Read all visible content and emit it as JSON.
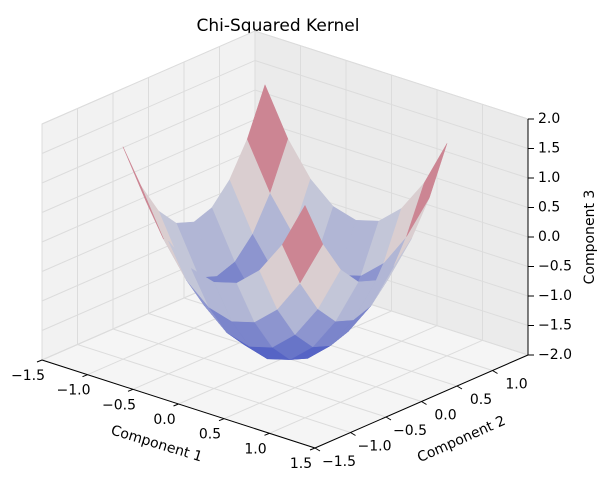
{
  "chart_data": {
    "type": "surface",
    "title": "Chi-Squared Kernel",
    "xlabel": "Component 1",
    "ylabel": "Component 2",
    "zlabel": "Component 3",
    "x": [
      -1,
      -0.75,
      -0.5,
      -0.25,
      0,
      0.25,
      0.5,
      0.75,
      1
    ],
    "y": [
      -1,
      -0.75,
      -0.5,
      -0.25,
      0,
      0.25,
      0.5,
      0.75,
      1
    ],
    "z": [
      [
        1.6,
        0.81,
        0.25,
        -0.09,
        -0.2,
        -0.09,
        0.25,
        0.81,
        1.6
      ],
      [
        0.81,
        0.03,
        -0.54,
        -0.88,
        -0.99,
        -0.88,
        -0.54,
        0.03,
        0.81
      ],
      [
        0.25,
        -0.54,
        -1.1,
        -1.44,
        -1.55,
        -1.44,
        -1.1,
        -0.54,
        0.25
      ],
      [
        -0.09,
        -0.88,
        -1.44,
        -1.78,
        -1.89,
        -1.78,
        -1.44,
        -0.88,
        -0.09
      ],
      [
        -0.2,
        -0.99,
        -1.55,
        -1.89,
        -2,
        -1.89,
        -1.55,
        -0.99,
        -0.2
      ],
      [
        -0.09,
        -0.88,
        -1.44,
        -1.78,
        -1.89,
        -1.78,
        -1.44,
        -0.88,
        -0.09
      ],
      [
        0.25,
        -0.54,
        -1.1,
        -1.44,
        -1.55,
        -1.44,
        -1.1,
        -0.54,
        0.25
      ],
      [
        0.81,
        0.03,
        -0.54,
        -0.88,
        -0.99,
        -0.88,
        -0.54,
        0.03,
        0.81
      ],
      [
        1.6,
        0.81,
        0.25,
        -0.09,
        -0.2,
        -0.09,
        0.25,
        0.81,
        1.6
      ]
    ],
    "xlim": [
      -1.5,
      1.5
    ],
    "ylim": [
      -1.5,
      1.5
    ],
    "zlim": [
      -2,
      2
    ],
    "xticks": [
      {
        "value": -1.5,
        "label": "−1.5"
      },
      {
        "value": -1,
        "label": "−1.0"
      },
      {
        "value": -0.5,
        "label": "−0.5"
      },
      {
        "value": 0,
        "label": "0.0"
      },
      {
        "value": 0.5,
        "label": "0.5"
      },
      {
        "value": 1,
        "label": "1.0"
      },
      {
        "value": 1.5,
        "label": "1.5"
      }
    ],
    "yticks": [
      {
        "value": -1.5,
        "label": "−1.5"
      },
      {
        "value": -1,
        "label": "−1.0"
      },
      {
        "value": -0.5,
        "label": "−0.5"
      },
      {
        "value": 0,
        "label": "0.0"
      },
      {
        "value": 0.5,
        "label": "0.5"
      },
      {
        "value": 1,
        "label": "1.0"
      }
    ],
    "zticks": [
      {
        "value": -2,
        "label": "−2.0"
      },
      {
        "value": -1.5,
        "label": "−1.5"
      },
      {
        "value": -1,
        "label": "−1.0"
      },
      {
        "value": -0.5,
        "label": "−0.5"
      },
      {
        "value": 0,
        "label": "0.0"
      },
      {
        "value": 0.5,
        "label": "0.5"
      },
      {
        "value": 1,
        "label": "1.0"
      },
      {
        "value": 1.5,
        "label": "1.5"
      },
      {
        "value": 2,
        "label": "2.0"
      }
    ],
    "grid": true
  }
}
